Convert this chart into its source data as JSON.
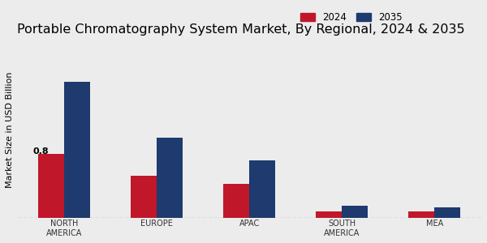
{
  "title": "Portable Chromatography System Market, By Regional, 2024 & 2035",
  "ylabel": "Market Size in USD Billion",
  "categories": [
    "NORTH\nAMERICA",
    "EUROPE",
    "APAC",
    "SOUTH\nAMERICA",
    "MEA"
  ],
  "values_2024": [
    0.8,
    0.52,
    0.42,
    0.08,
    0.08
  ],
  "values_2035": [
    1.7,
    1.0,
    0.72,
    0.15,
    0.13
  ],
  "color_2024": "#c0182a",
  "color_2035": "#1e3a6e",
  "annotation_text": "0.8",
  "annotation_region_idx": 0,
  "background_color": "#ececec",
  "legend_labels": [
    "2024",
    "2035"
  ],
  "bar_width": 0.28,
  "title_fontsize": 11.5,
  "label_fontsize": 8,
  "tick_fontsize": 7,
  "legend_fontsize": 8.5,
  "ylim_max": 2.2
}
